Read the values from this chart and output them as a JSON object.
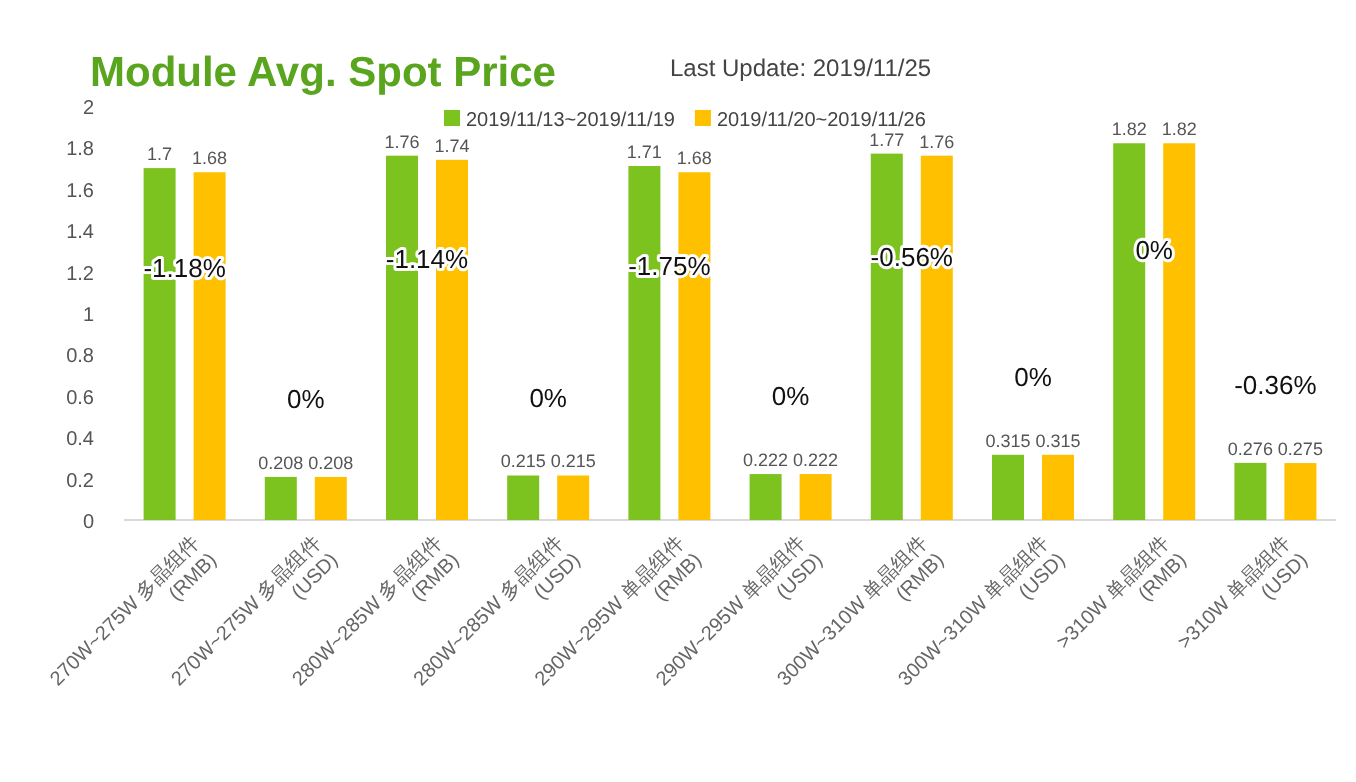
{
  "chart_data": {
    "type": "bar",
    "title": "Module Avg. Spot Price",
    "subtitle": "Last Update: 2019/11/25",
    "categories": [
      "270W~275W 多晶组件 (RMB)",
      "270W~275W 多晶组件 (USD)",
      "280W~285W 多晶组件 (RMB)",
      "280W~285W 多晶组件 (USD)",
      "290W~295W 单晶组件 (RMB)",
      "290W~295W 单晶组件 (USD)",
      "300W~310W 单晶组件 (RMB)",
      "300W~310W 单晶组件 (USD)",
      ">310W 单晶组件 (RMB)",
      ">310W 单晶组件 (USD)"
    ],
    "series": [
      {
        "name": "2019/11/13~2019/11/19",
        "color": "#7dc31f",
        "values": [
          1.7,
          0.208,
          1.76,
          0.215,
          1.71,
          0.222,
          1.77,
          0.315,
          1.82,
          0.276
        ]
      },
      {
        "name": "2019/11/20~2019/11/26",
        "color": "#ffc000",
        "values": [
          1.68,
          0.208,
          1.74,
          0.215,
          1.68,
          0.222,
          1.76,
          0.315,
          1.82,
          0.275
        ]
      }
    ],
    "ylim": [
      0,
      2
    ],
    "yticks": [
      0,
      0.2,
      0.4,
      0.6,
      0.8,
      1,
      1.2,
      1.4,
      1.6,
      1.8,
      2
    ],
    "data_labels": true,
    "legend": "top",
    "grid": false,
    "annotations": [
      "-1.18%",
      "0%",
      "-1.14%",
      "0%",
      "-1.75%",
      "0%",
      "-0.56%",
      "0%",
      "0%",
      "-0.36%"
    ]
  }
}
